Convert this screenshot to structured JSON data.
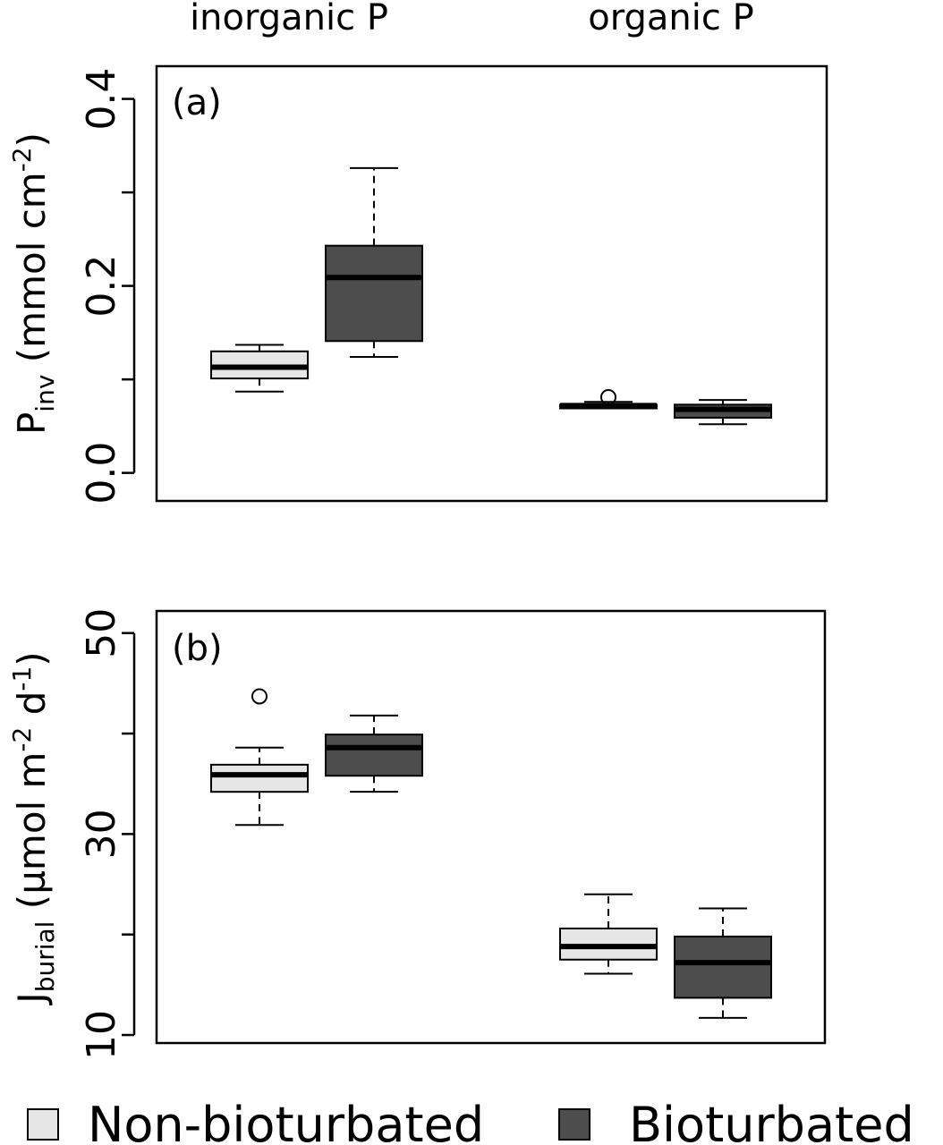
{
  "colors": {
    "non_bioturbated": "#e6e6e6",
    "bioturbated": "#4d4d4d",
    "stroke": "#000000",
    "background": "#ffffff"
  },
  "column_labels": [
    "inorganic P",
    "organic P"
  ],
  "legend": {
    "placement": "bottom",
    "entries": [
      {
        "label": "Non-bioturbated",
        "color": "#e6e6e6"
      },
      {
        "label": "Bioturbated",
        "color": "#4d4d4d"
      }
    ]
  },
  "chart_data": [
    {
      "type": "box",
      "panel_label": "(a)",
      "ylabel": {
        "main": "P",
        "sub": "inv",
        "rest": " (mmol cm",
        "sup": "-2",
        "end": ")"
      },
      "ylim": [
        -0.03,
        0.435
      ],
      "yticks": [
        0.0,
        0.1,
        0.2,
        0.3,
        0.4
      ],
      "ytick_labels": [
        "0.0",
        "",
        "0.2",
        "",
        "0.4"
      ],
      "categories": [
        "inorganic P",
        "organic P"
      ],
      "series": [
        {
          "name": "Non-bioturbated",
          "boxes": [
            {
              "category": "inorganic P",
              "whisker_low": 0.087,
              "q1": 0.101,
              "median": 0.113,
              "q3": 0.13,
              "whisker_high": 0.137,
              "outliers": []
            },
            {
              "category": "organic P",
              "whisker_low": 0.069,
              "q1": 0.069,
              "median": 0.072,
              "q3": 0.073,
              "whisker_high": 0.076,
              "outliers": [
                0.081
              ]
            }
          ]
        },
        {
          "name": "Bioturbated",
          "boxes": [
            {
              "category": "inorganic P",
              "whisker_low": 0.124,
              "q1": 0.141,
              "median": 0.209,
              "q3": 0.243,
              "whisker_high": 0.326,
              "outliers": []
            },
            {
              "category": "organic P",
              "whisker_low": 0.052,
              "q1": 0.059,
              "median": 0.068,
              "q3": 0.073,
              "whisker_high": 0.078,
              "outliers": []
            }
          ]
        }
      ]
    },
    {
      "type": "box",
      "panel_label": "(b)",
      "ylabel": {
        "main": "J",
        "sub": "burial",
        "rest": " (µmol m",
        "sup": "-2",
        "mid": " d",
        "sup2": "-1",
        "end": ")"
      },
      "ylim": [
        9.2,
        52.2
      ],
      "yticks": [
        10,
        20,
        30,
        40,
        50
      ],
      "ytick_labels": [
        "10",
        "",
        "30",
        "",
        "50"
      ],
      "categories": [
        "inorganic P",
        "organic P"
      ],
      "series": [
        {
          "name": "Non-bioturbated",
          "boxes": [
            {
              "category": "inorganic P",
              "whisker_low": 30.9,
              "q1": 34.2,
              "median": 35.9,
              "q3": 36.9,
              "whisker_high": 38.6,
              "outliers": [
                43.7
              ]
            },
            {
              "category": "organic P",
              "whisker_low": 16.1,
              "q1": 17.5,
              "median": 18.8,
              "q3": 20.6,
              "whisker_high": 24.0
            }
          ]
        },
        {
          "name": "Bioturbated",
          "boxes": [
            {
              "category": "inorganic P",
              "whisker_low": 34.2,
              "q1": 35.8,
              "median": 38.6,
              "q3": 39.9,
              "whisker_high": 41.8,
              "outliers": []
            },
            {
              "category": "organic P",
              "whisker_low": 11.7,
              "q1": 13.7,
              "median": 17.2,
              "q3": 19.8,
              "whisker_high": 22.6,
              "outliers": []
            }
          ]
        }
      ]
    }
  ]
}
